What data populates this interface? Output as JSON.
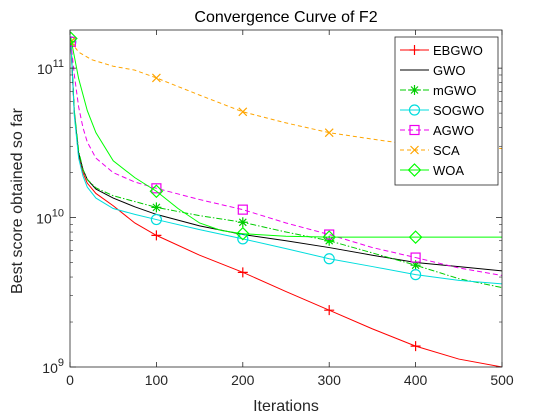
{
  "chart_data": {
    "type": "line",
    "title": "Convergence Curve of F2",
    "xlabel": "Iterations",
    "ylabel": "Best score obtained so far",
    "xlim": [
      0,
      500
    ],
    "ylim": [
      1000000000,
      180000000000
    ],
    "yscale": "log",
    "x_ticks": [
      0,
      100,
      200,
      300,
      400,
      500
    ],
    "x_tick_labels": [
      "0",
      "100",
      "200",
      "300",
      "400",
      "500"
    ],
    "y_ticks": [
      1000000000,
      10000000000,
      100000000000
    ],
    "y_tick_labels": [
      {
        "base": "10",
        "exp": "9"
      },
      {
        "base": "10",
        "exp": "10"
      },
      {
        "base": "10",
        "exp": "11"
      }
    ],
    "grid": false,
    "legend_position": "top-right",
    "series": [
      {
        "name": "EBGWO",
        "color": "#ff0000",
        "dash": "",
        "marker": "plus",
        "x": [
          1,
          5,
          10,
          15,
          20,
          30,
          50,
          75,
          100,
          150,
          200,
          250,
          300,
          350,
          400,
          450,
          500
        ],
        "y": [
          150000000000,
          50000000000,
          26000000000,
          20000000000,
          17000000000,
          14500000000,
          12000000000,
          9200000000,
          7600000000,
          5600000000,
          4300000000,
          3200000000,
          2400000000,
          1800000000,
          1380000000,
          1130000000,
          1000000000
        ],
        "markers_x": [
          1,
          100,
          200,
          300,
          400
        ]
      },
      {
        "name": "GWO",
        "color": "#000000",
        "dash": "",
        "marker": "none",
        "x": [
          1,
          5,
          10,
          15,
          20,
          30,
          50,
          75,
          100,
          150,
          200,
          250,
          300,
          350,
          400,
          450,
          500
        ],
        "y": [
          150000000000,
          50000000000,
          27000000000,
          21000000000,
          18000000000,
          15500000000,
          13500000000,
          11800000000,
          10500000000,
          8800000000,
          7700000000,
          7000000000,
          6300000000,
          5600000000,
          5000000000,
          4700000000,
          4400000000
        ],
        "markers_x": []
      },
      {
        "name": "mGWO",
        "color": "#00cc00",
        "dash": "6,2,1.5,2",
        "marker": "asterisk",
        "x": [
          1,
          5,
          10,
          15,
          20,
          30,
          50,
          75,
          100,
          150,
          200,
          250,
          300,
          350,
          400,
          450,
          500
        ],
        "y": [
          150000000000,
          52000000000,
          28000000000,
          21000000000,
          18000000000,
          15800000000,
          14000000000,
          12800000000,
          11700000000,
          10300000000,
          9300000000,
          8000000000,
          7000000000,
          5800000000,
          4800000000,
          3900000000,
          3400000000
        ],
        "markers_x": [
          1,
          100,
          200,
          300,
          400
        ]
      },
      {
        "name": "SOGWO",
        "color": "#00dddd",
        "dash": "",
        "marker": "circle",
        "x": [
          1,
          5,
          10,
          15,
          20,
          30,
          50,
          75,
          100,
          150,
          200,
          250,
          300,
          350,
          400,
          450,
          500
        ],
        "y": [
          150000000000,
          48000000000,
          25000000000,
          19000000000,
          16000000000,
          13500000000,
          11500000000,
          10500000000,
          9700000000,
          8300000000,
          7200000000,
          6200000000,
          5300000000,
          4700000000,
          4150000000,
          3800000000,
          3600000000
        ],
        "markers_x": [
          1,
          100,
          200,
          300,
          400
        ]
      },
      {
        "name": "AGWO",
        "color": "#ee00ee",
        "dash": "5,3",
        "marker": "square",
        "x": [
          1,
          5,
          10,
          15,
          20,
          30,
          50,
          75,
          100,
          150,
          200,
          250,
          300,
          350,
          400,
          450,
          500
        ],
        "y": [
          150000000000,
          90000000000,
          55000000000,
          40000000000,
          32000000000,
          25000000000,
          20000000000,
          17300000000,
          15700000000,
          13200000000,
          11300000000,
          9200000000,
          7700000000,
          6300000000,
          5400000000,
          4600000000,
          4100000000
        ],
        "markers_x": [
          1,
          100,
          200,
          300,
          400
        ]
      },
      {
        "name": "SCA",
        "color": "#ffa500",
        "dash": "4,3",
        "marker": "x",
        "x": [
          1,
          10,
          25,
          50,
          75,
          100,
          150,
          200,
          250,
          300,
          350,
          400,
          450,
          500
        ],
        "y": [
          150000000000,
          128000000000,
          114000000000,
          103000000000,
          97000000000,
          86000000000,
          66000000000,
          51000000000,
          43000000000,
          37000000000,
          33500000000,
          30500000000,
          29500000000,
          29000000000
        ],
        "markers_x": [
          1,
          100,
          200,
          300,
          400
        ]
      },
      {
        "name": "WOA",
        "color": "#00ff00",
        "dash": "",
        "marker": "diamond",
        "x": [
          1,
          5,
          10,
          20,
          30,
          50,
          75,
          100,
          125,
          150,
          175,
          200,
          250,
          300,
          400,
          500
        ],
        "y": [
          158000000000,
          120000000000,
          85000000000,
          52000000000,
          37000000000,
          24000000000,
          18500000000,
          15000000000,
          11500000000,
          9200000000,
          8200000000,
          7800000000,
          7500000000,
          7400000000,
          7400000000,
          7400000000
        ],
        "markers_x": [
          1,
          100,
          200,
          300,
          400
        ]
      }
    ]
  }
}
